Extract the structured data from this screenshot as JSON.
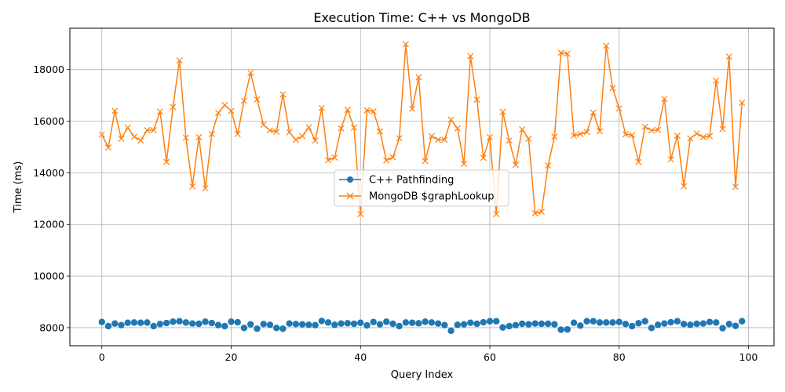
{
  "chart_data": {
    "type": "line",
    "title": "Execution Time: C++ vs MongoDB",
    "xlabel": "Query Index",
    "ylabel": "Time (ms)",
    "xlim": [
      -4.95,
      103.95
    ],
    "ylim": [
      7300,
      19600
    ],
    "xticks": [
      0,
      20,
      40,
      60,
      80,
      100
    ],
    "yticks": [
      8000,
      10000,
      12000,
      14000,
      16000,
      18000
    ],
    "grid": true,
    "legend_position": "center-right",
    "x": [
      0,
      1,
      2,
      3,
      4,
      5,
      6,
      7,
      8,
      9,
      10,
      11,
      12,
      13,
      14,
      15,
      16,
      17,
      18,
      19,
      20,
      21,
      22,
      23,
      24,
      25,
      26,
      27,
      28,
      29,
      30,
      31,
      32,
      33,
      34,
      35,
      36,
      37,
      38,
      39,
      40,
      41,
      42,
      43,
      44,
      45,
      46,
      47,
      48,
      49,
      50,
      51,
      52,
      53,
      54,
      55,
      56,
      57,
      58,
      59,
      60,
      61,
      62,
      63,
      64,
      65,
      66,
      67,
      68,
      69,
      70,
      71,
      72,
      73,
      74,
      75,
      76,
      77,
      78,
      79,
      80,
      81,
      82,
      83,
      84,
      85,
      86,
      87,
      88,
      89,
      90,
      91,
      92,
      93,
      94,
      95,
      96,
      97,
      98,
      99
    ],
    "series": [
      {
        "name": "C++ Pathfinding",
        "color": "#1f77b4",
        "marker": "circle",
        "linestyle": "none",
        "values": [
          8220,
          8060,
          8160,
          8100,
          8190,
          8200,
          8190,
          8200,
          8060,
          8140,
          8180,
          8230,
          8250,
          8200,
          8160,
          8150,
          8230,
          8180,
          8100,
          8060,
          8230,
          8210,
          7990,
          8130,
          7960,
          8140,
          8110,
          7990,
          7960,
          8160,
          8140,
          8130,
          8110,
          8100,
          8260,
          8200,
          8110,
          8160,
          8170,
          8150,
          8190,
          8090,
          8220,
          8130,
          8230,
          8150,
          8060,
          8200,
          8190,
          8170,
          8230,
          8200,
          8160,
          8100,
          7880,
          8110,
          8130,
          8190,
          8150,
          8210,
          8250,
          8250,
          8010,
          8060,
          8100,
          8150,
          8130,
          8160,
          8150,
          8150,
          8130,
          7920,
          7930,
          8190,
          8080,
          8250,
          8250,
          8200,
          8200,
          8200,
          8220,
          8140,
          8060,
          8170,
          8250,
          7990,
          8110,
          8160,
          8210,
          8250,
          8140,
          8110,
          8150,
          8160,
          8220,
          8200,
          7980,
          8140,
          8070,
          8250
        ]
      },
      {
        "name": "MongoDB $graphLookup",
        "color": "#ff7f0e",
        "marker": "x",
        "linestyle": "solid",
        "values": [
          15480,
          14980,
          16400,
          15320,
          15750,
          15400,
          15250,
          15650,
          15650,
          16370,
          14420,
          16550,
          18350,
          15360,
          13470,
          15380,
          13400,
          15500,
          16320,
          16620,
          16400,
          15500,
          16790,
          17870,
          16840,
          15860,
          15640,
          15590,
          17040,
          15570,
          15280,
          15420,
          15760,
          15250,
          16510,
          14490,
          14590,
          15720,
          16440,
          15750,
          12400,
          16420,
          16380,
          15600,
          14480,
          14600,
          15340,
          18980,
          16480,
          17700,
          14460,
          15420,
          15280,
          15280,
          16060,
          15720,
          14350,
          18520,
          16830,
          14580,
          15380,
          12400,
          16360,
          15250,
          14310,
          15680,
          15320,
          12430,
          12490,
          14280,
          15400,
          18650,
          18610,
          15440,
          15500,
          15580,
          16330,
          15610,
          18920,
          17280,
          16490,
          15490,
          15460,
          14420,
          15780,
          15640,
          15660,
          16860,
          14520,
          15440,
          13480,
          15330,
          15520,
          15380,
          15420,
          17570,
          15700,
          18500,
          13460,
          16710
        ]
      }
    ]
  }
}
